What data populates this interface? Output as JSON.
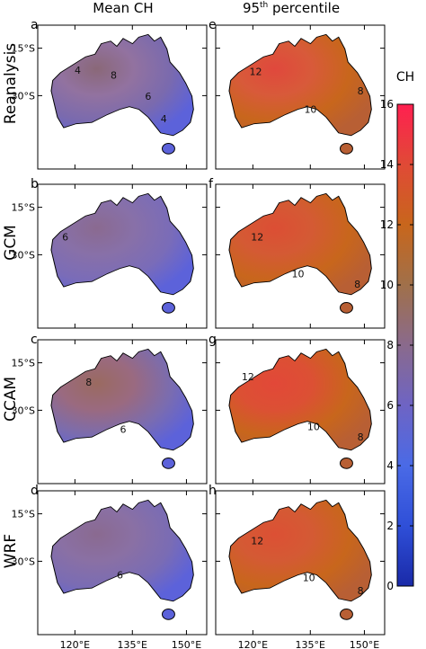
{
  "columns": [
    "Mean CH",
    "95th percentile"
  ],
  "column_superscript": "th",
  "rows": [
    "Reanalysis",
    "GCM",
    "CCAM",
    "WRF"
  ],
  "panels": [
    {
      "letter": "a",
      "row": 0,
      "col": 0,
      "fill": [
        "#9272a0",
        "#7a6aae",
        "#5c62da"
      ],
      "core": "#8a6878",
      "contours": [
        {
          "label": "4"
        },
        {
          "label": "8"
        },
        {
          "label": "6"
        },
        {
          "label": "4"
        }
      ]
    },
    {
      "letter": "e",
      "row": 0,
      "col": 1,
      "fill": [
        "#d85a3a",
        "#c8661c",
        "#b85f34"
      ],
      "core": "#e0483c",
      "contours": [
        {
          "label": "12"
        },
        {
          "label": "10"
        },
        {
          "label": "8"
        }
      ]
    },
    {
      "letter": "b",
      "row": 1,
      "col": 0,
      "fill": [
        "#8870a8",
        "#7a6cb8",
        "#5c62da"
      ],
      "core": "#8a6a90",
      "contours": [
        {
          "label": "6"
        }
      ]
    },
    {
      "letter": "f",
      "row": 1,
      "col": 1,
      "fill": [
        "#d45a34",
        "#c8661c",
        "#b85f34"
      ],
      "core": "#dc4e34",
      "contours": [
        {
          "label": "12"
        },
        {
          "label": "10"
        },
        {
          "label": "8"
        }
      ]
    },
    {
      "letter": "c",
      "row": 2,
      "col": 0,
      "fill": [
        "#9a6a80",
        "#7a6cb0",
        "#5c62da"
      ],
      "core": "#9a6a60",
      "contours": [
        {
          "label": "8"
        },
        {
          "label": "6"
        }
      ]
    },
    {
      "letter": "g",
      "row": 2,
      "col": 1,
      "fill": [
        "#dc5034",
        "#c8661c",
        "#b85f34"
      ],
      "core": "#e24838",
      "contours": [
        {
          "label": "12"
        },
        {
          "label": "10"
        },
        {
          "label": "8"
        }
      ]
    },
    {
      "letter": "d",
      "row": 3,
      "col": 0,
      "fill": [
        "#8a70a4",
        "#7a6cb4",
        "#5c62da"
      ],
      "core": "#8a6a90",
      "contours": [
        {
          "label": "6"
        }
      ]
    },
    {
      "letter": "h",
      "row": 3,
      "col": 1,
      "fill": [
        "#d45a34",
        "#c8661c",
        "#b85f34"
      ],
      "core": "#dc5034",
      "contours": [
        {
          "label": "12"
        },
        {
          "label": "10"
        },
        {
          "label": "8"
        }
      ]
    }
  ],
  "lat_ticks": [
    "15°S",
    "30°S"
  ],
  "lon_ticks": [
    "120°E",
    "135°E",
    "150°E"
  ],
  "colorbar": {
    "title": "CH",
    "min": 0,
    "max": 16,
    "tick_labels": [
      "0",
      "2",
      "4",
      "6",
      "8",
      "10",
      "12",
      "14",
      "16"
    ],
    "colors": [
      "#1a2aa8",
      "#2f4fd8",
      "#4a6ae6",
      "#6e64c4",
      "#8a6a8c",
      "#a0704a",
      "#c8661c",
      "#e04a36",
      "#ff2050"
    ]
  }
}
